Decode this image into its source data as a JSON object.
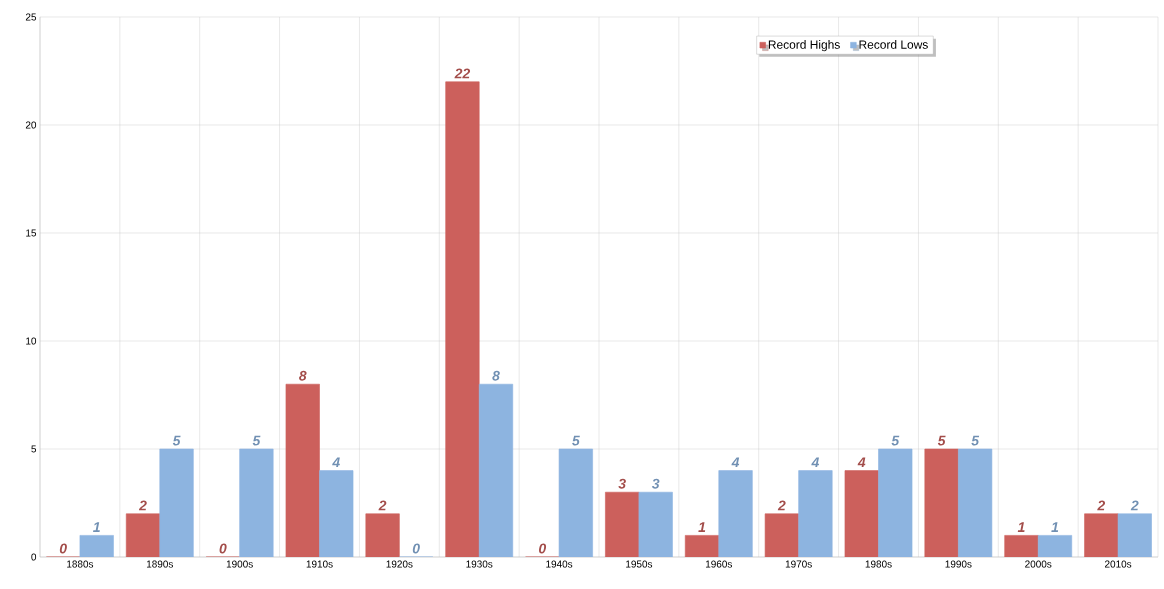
{
  "chart_data": {
    "type": "bar",
    "categories": [
      "1880s",
      "1890s",
      "1900s",
      "1910s",
      "1920s",
      "1930s",
      "1940s",
      "1950s",
      "1960s",
      "1970s",
      "1980s",
      "1990s",
      "2000s",
      "2010s"
    ],
    "series": [
      {
        "name": "Record Highs",
        "color": "#cc605c",
        "values": [
          0,
          2,
          0,
          8,
          2,
          22,
          0,
          3,
          1,
          2,
          4,
          5,
          1,
          2
        ]
      },
      {
        "name": "Record Lows",
        "color": "#8db4e0",
        "values": [
          1,
          5,
          5,
          4,
          0,
          8,
          5,
          3,
          4,
          4,
          5,
          5,
          1,
          2
        ]
      }
    ],
    "ylim": [
      0,
      25
    ],
    "yticks": [
      0,
      5,
      10,
      15,
      20,
      25
    ],
    "grid": true,
    "legend": "top",
    "data_labels": true
  }
}
